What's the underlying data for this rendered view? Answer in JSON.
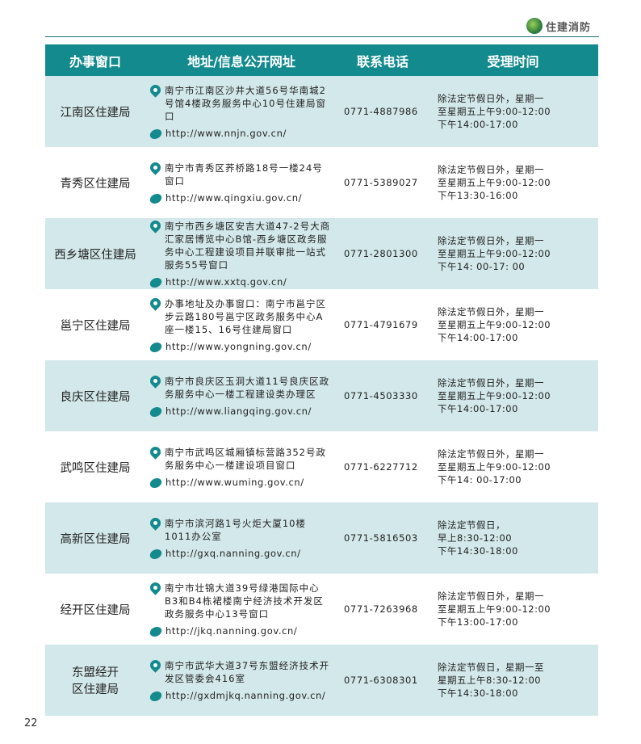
{
  "header": {
    "logo_text": "住建消防"
  },
  "table": {
    "columns": [
      "办事窗口",
      "地址/信息公开网址",
      "联系电话",
      "受理时间"
    ],
    "rows": [
      {
        "name": "江南区住建局",
        "address": "南宁市江南区沙井大道56号华南城2号馆4楼政务服务中心10号住建局窗口",
        "url": "http://www.nnjn.gov.cn/",
        "phone": "0771-4887986",
        "time": "除法定节假日外，星期一\n至星期五上午9:00-12:00\n下午14:00-17:00"
      },
      {
        "name": "青秀区住建局",
        "address": "南宁市青秀区荞桥路18号一楼24号窗口",
        "url": "http://www.qingxiu.gov.cn/",
        "phone": "0771-5389027",
        "time": "除法定节假日外，星期一\n至星期五上午9:00-12:00\n下午13:30-16:00"
      },
      {
        "name": "西乡塘区住建局",
        "address": "南宁市西乡塘区安吉大道47-2号大商汇家居博览中心B馆-西乡塘区政务服务中心工程建设项目并联审批一站式服务55号窗口",
        "url": "http://www.xxtq.gov.cn/",
        "phone": "0771-2801300",
        "time": "除法定节假日外，星期一\n至星期五上午9:00-12:00\n下午14: 00-17: 00"
      },
      {
        "name": "邕宁区住建局",
        "address": "办事地址及办事窗口：南宁市邕宁区步云路180号邕宁区政务服务中心A座一楼15、16号住建局窗口",
        "url": "http://www.yongning.gov.cn/",
        "phone": "0771-4791679",
        "time": "除法定节假日外，星期一\n至星期五上午9:00-12:00\n下午14:00-17:00"
      },
      {
        "name": "良庆区住建局",
        "address": "南宁市良庆区玉洞大道11号良庆区政务服务中心一楼工程建设类办理区",
        "url": "http://www.liangqing.gov.cn/",
        "phone": "0771-4503330",
        "time": "除法定节假日外，星期一\n至星期五上午9:00-12:00\n下午14:00-17:00"
      },
      {
        "name": "武鸣区住建局",
        "address": "南宁市武鸣区城厢镇标营路352号政务服务中心一楼建设项目窗口",
        "url": "http://www.wuming.gov.cn/",
        "phone": "0771-6227712",
        "time": "除法定节假日外，星期一\n至星期五上午9:00-12:00\n下午14:  00-17:00"
      },
      {
        "name": "高新区住建局",
        "address": "南宁市滨河路1号火炬大厦10楼1011办公室",
        "url": "http://gxq.nanning.gov.cn/",
        "phone": "0771-5816503",
        "time": "除法定节假日，\n早上8:30-12:00\n下午14:30-18:00"
      },
      {
        "name": "经开区住建局",
        "address": "南宁市壮锦大道39号绿港国际中心B3和B4栋裙楼南宁经济技术开发区政务服务中心13号窗口",
        "url": "http://jkq.nanning.gov.cn/",
        "phone": "0771-7263968",
        "time": "除法定节假日外，星期一\n至星期五上午9:00-12:00\n下午13:00-17:00"
      },
      {
        "name": "东盟经开区住建局",
        "address": "南宁市武华大道37号东盟经济技术开发区管委会416室",
        "url": "http://gxdmjkq.nanning.gov.cn/",
        "phone": "0771-6308301",
        "time": "除法定节假日，星期一至\n星期五上午8:30-12:00\n下午14:30-18:00"
      }
    ]
  },
  "footer": {
    "page_number": "22"
  },
  "colors": {
    "header": "#138a8d",
    "row_alt": "#d3e8ea"
  }
}
